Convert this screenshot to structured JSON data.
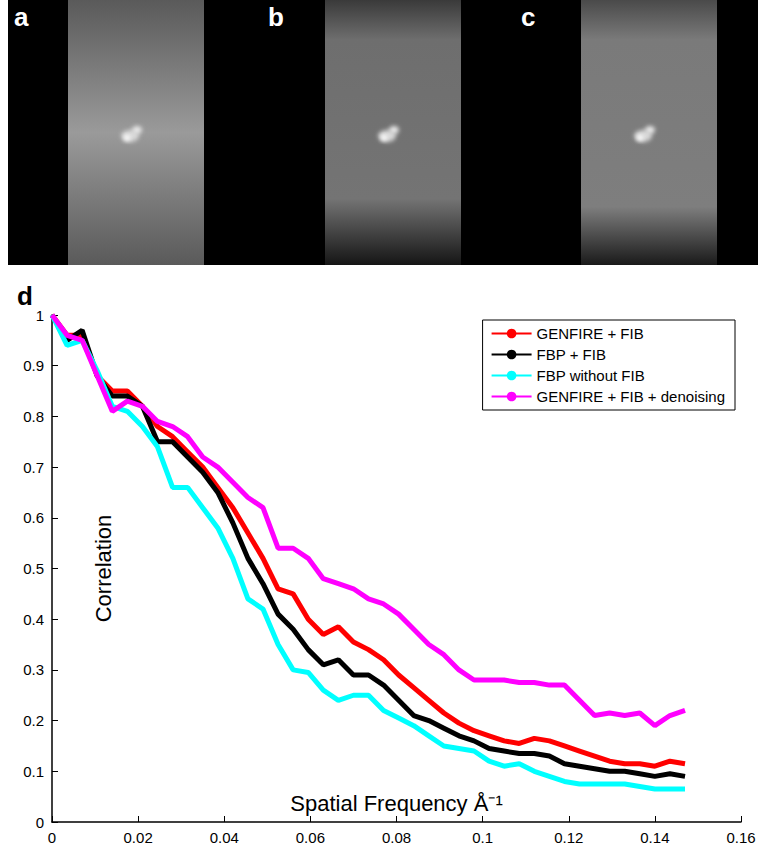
{
  "image_panels": [
    {
      "label": "a"
    },
    {
      "label": "b"
    },
    {
      "label": "c"
    }
  ],
  "chart_data": {
    "type": "line",
    "panel_label": "d",
    "x_label": "Spatial Frequency Å⁻¹",
    "y_label": "Correlation",
    "x": [
      0,
      0.0035,
      0.007,
      0.0105,
      0.014,
      0.0175,
      0.021,
      0.0245,
      0.028,
      0.0315,
      0.035,
      0.0385,
      0.042,
      0.0455,
      0.049,
      0.0525,
      0.056,
      0.0595,
      0.063,
      0.0665,
      0.07,
      0.0735,
      0.077,
      0.0805,
      0.084,
      0.0875,
      0.091,
      0.0945,
      0.098,
      0.1015,
      0.105,
      0.1085,
      0.112,
      0.1155,
      0.119,
      0.1225,
      0.126,
      0.1295,
      0.133,
      0.1365,
      0.14,
      0.1435,
      0.147
    ],
    "series": [
      {
        "name": "GENFIRE + FIB",
        "color": "#ff0000",
        "line_style": "solid",
        "values": [
          1.0,
          0.96,
          0.96,
          0.88,
          0.85,
          0.85,
          0.82,
          0.78,
          0.76,
          0.73,
          0.7,
          0.66,
          0.62,
          0.57,
          0.52,
          0.46,
          0.45,
          0.4,
          0.37,
          0.385,
          0.355,
          0.34,
          0.32,
          0.29,
          0.265,
          0.24,
          0.215,
          0.195,
          0.18,
          0.17,
          0.16,
          0.155,
          0.165,
          0.16,
          0.15,
          0.14,
          0.13,
          0.12,
          0.115,
          0.115,
          0.11,
          0.12,
          0.115
        ]
      },
      {
        "name": "FBP + FIB",
        "color": "#000000",
        "line_style": "solid",
        "values": [
          1.0,
          0.95,
          0.97,
          0.88,
          0.84,
          0.84,
          0.82,
          0.75,
          0.75,
          0.72,
          0.69,
          0.65,
          0.59,
          0.52,
          0.47,
          0.41,
          0.38,
          0.34,
          0.31,
          0.32,
          0.29,
          0.29,
          0.27,
          0.24,
          0.21,
          0.2,
          0.185,
          0.17,
          0.16,
          0.145,
          0.14,
          0.135,
          0.135,
          0.13,
          0.115,
          0.11,
          0.105,
          0.1,
          0.1,
          0.095,
          0.09,
          0.095,
          0.09
        ]
      },
      {
        "name": "FBP without FIB",
        "color": "#00ffff",
        "line_style": "solid",
        "values": [
          1.0,
          0.94,
          0.95,
          0.89,
          0.82,
          0.81,
          0.78,
          0.74,
          0.66,
          0.66,
          0.62,
          0.58,
          0.52,
          0.44,
          0.42,
          0.35,
          0.3,
          0.295,
          0.26,
          0.24,
          0.25,
          0.25,
          0.22,
          0.205,
          0.19,
          0.17,
          0.15,
          0.145,
          0.14,
          0.12,
          0.11,
          0.115,
          0.1,
          0.09,
          0.08,
          0.075,
          0.075,
          0.075,
          0.075,
          0.07,
          0.065,
          0.065,
          0.065
        ]
      },
      {
        "name": "GENFIRE + FIB + denoising",
        "color": "#ff00ff",
        "line_style": "solid",
        "values": [
          1.0,
          0.96,
          0.95,
          0.88,
          0.81,
          0.83,
          0.82,
          0.79,
          0.78,
          0.76,
          0.72,
          0.7,
          0.67,
          0.64,
          0.62,
          0.54,
          0.54,
          0.52,
          0.48,
          0.47,
          0.46,
          0.44,
          0.43,
          0.41,
          0.38,
          0.35,
          0.33,
          0.3,
          0.28,
          0.28,
          0.28,
          0.275,
          0.275,
          0.27,
          0.27,
          0.24,
          0.21,
          0.215,
          0.21,
          0.215,
          0.19,
          0.21,
          0.22
        ]
      }
    ],
    "xlim": [
      0,
      0.16
    ],
    "xticks": [
      0,
      0.02,
      0.04,
      0.06,
      0.08,
      0.1,
      0.12,
      0.14,
      0.16
    ],
    "ylim": [
      0,
      1
    ],
    "yticks": [
      0,
      0.1,
      0.2,
      0.3,
      0.4,
      0.5,
      0.6,
      0.7,
      0.8,
      0.9,
      1
    ],
    "grid": false,
    "legend": "upper right"
  }
}
